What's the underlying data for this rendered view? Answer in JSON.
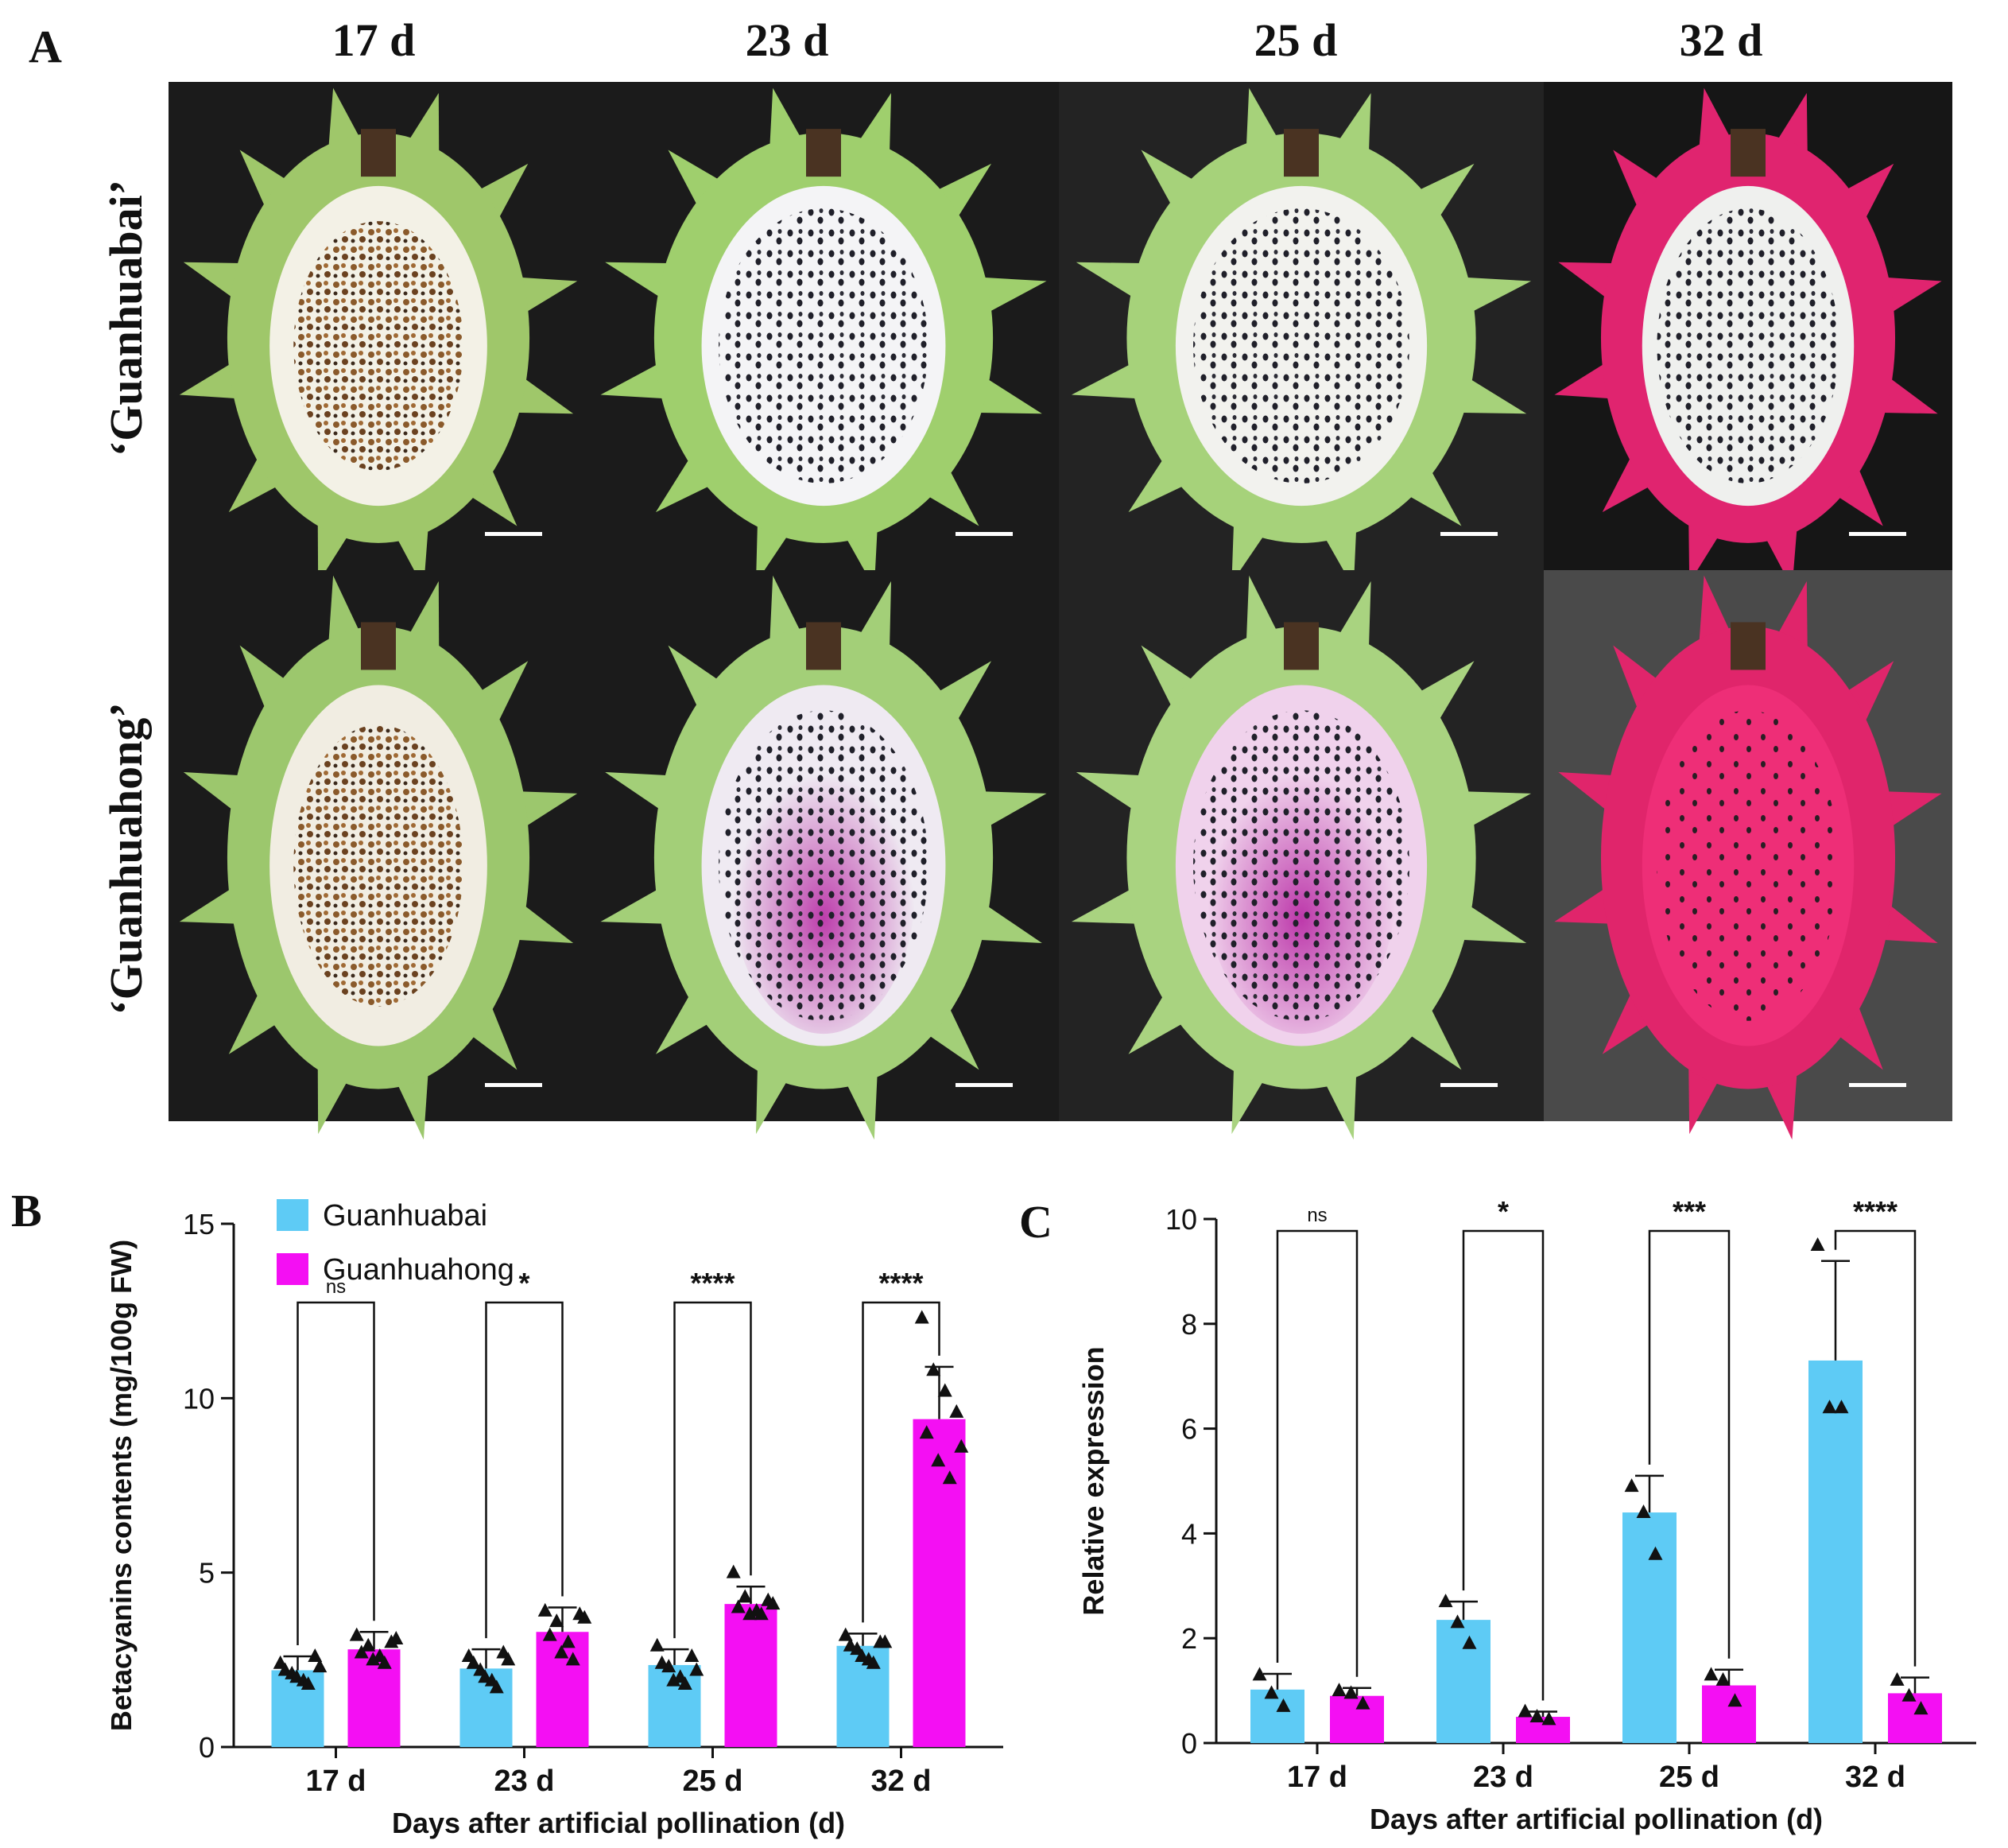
{
  "panel_a": {
    "label": "A",
    "column_headers": [
      "17 d",
      "23 d",
      "25 d",
      "32 d"
    ],
    "row_labels": [
      "‘Guanhuabai’",
      "‘Guanhuahong’"
    ],
    "photos": [
      {
        "cultivar": "Guanhuabai",
        "day": "17 d",
        "rind": "#9fc76a",
        "flesh": "#f3f1e6",
        "seeds": "#8a5a2b",
        "tint": "",
        "bg": "#1b1b1b"
      },
      {
        "cultivar": "Guanhuabai",
        "day": "23 d",
        "rind": "#9fcf6d",
        "flesh": "#f4f4f6",
        "seeds": "#1f1f28",
        "tint": "",
        "bg": "#1b1b1b"
      },
      {
        "cultivar": "Guanhuabai",
        "day": "25 d",
        "rind": "#a6d27a",
        "flesh": "#f2f2ee",
        "seeds": "#1f1f28",
        "tint": "",
        "bg": "#232323"
      },
      {
        "cultivar": "Guanhuabai",
        "day": "32 d",
        "rind": "#e0246f",
        "flesh": "#eff0ee",
        "seeds": "#1f1f28",
        "tint": "",
        "bg": "#161616"
      },
      {
        "cultivar": "Guanhuahong",
        "day": "17 d",
        "rind": "#9cc76d",
        "flesh": "#f1ede2",
        "seeds": "#8a5a2b",
        "tint": "",
        "bg": "#1b1b1b"
      },
      {
        "cultivar": "Guanhuahong",
        "day": "23 d",
        "rind": "#a3cf78",
        "flesh": "#efeaf2",
        "seeds": "#1f1f28",
        "tint": "#9c2a8c",
        "bg": "#1b1b1b"
      },
      {
        "cultivar": "Guanhuahong",
        "day": "25 d",
        "rind": "#a9d380",
        "flesh": "#f0d2ec",
        "seeds": "#1f1f28",
        "tint": "#b0129a",
        "bg": "#232323"
      },
      {
        "cultivar": "Guanhuahong",
        "day": "32 d",
        "rind": "#e0256b",
        "flesh": "#ee2e77",
        "seeds": "#2a1e24",
        "tint": "",
        "bg": "#4a4a4a"
      }
    ]
  },
  "chart_data": [
    {
      "panel": "B",
      "type": "bar",
      "xlabel": "Days after artificial pollination (d)",
      "ylabel": "Betacyanins contents (mg/100g FW)",
      "ylim": [
        0,
        15
      ],
      "yticks": [
        0,
        5,
        10,
        15
      ],
      "categories": [
        "17 d",
        "23 d",
        "25 d",
        "32 d"
      ],
      "series": [
        {
          "name": "Guanhuabai",
          "color": "#5ecbf5",
          "values": [
            2.2,
            2.25,
            2.35,
            2.9
          ],
          "errors": [
            0.4,
            0.55,
            0.45,
            0.35
          ],
          "points": [
            [
              2.4,
              2.1,
              1.9,
              2.6,
              2.2,
              2.0,
              1.8,
              2.3
            ],
            [
              2.6,
              2.2,
              1.9,
              2.7,
              2.4,
              2.0,
              1.7,
              2.5
            ],
            [
              2.9,
              2.3,
              2.0,
              2.6,
              2.4,
              1.9,
              1.8,
              2.2
            ],
            [
              3.2,
              2.8,
              2.5,
              3.0,
              2.9,
              2.6,
              2.4,
              3.0
            ]
          ]
        },
        {
          "name": "Guanhuahong",
          "color": "#f40ff3",
          "values": [
            2.8,
            3.3,
            4.1,
            9.4
          ],
          "errors": [
            0.5,
            0.7,
            0.5,
            1.5
          ],
          "points": [
            [
              3.2,
              2.9,
              2.6,
              3.0,
              2.7,
              2.5,
              2.4,
              3.1
            ],
            [
              3.9,
              3.6,
              3.0,
              3.8,
              3.2,
              2.7,
              2.5,
              3.7
            ],
            [
              5.0,
              4.3,
              3.9,
              4.2,
              4.0,
              3.8,
              3.8,
              4.1
            ],
            [
              12.3,
              10.8,
              10.2,
              9.6,
              9.0,
              8.2,
              7.7,
              8.6
            ]
          ]
        }
      ],
      "significance": [
        "ns",
        "*",
        "****",
        "****"
      ],
      "legend": {
        "placement": "top-left",
        "entries": [
          "Guanhuabai",
          "Guanhuahong"
        ]
      }
    },
    {
      "panel": "C",
      "type": "bar",
      "xlabel": "Days after artificial pollination (d)",
      "ylabel": "Relative expression",
      "ylim": [
        0,
        10
      ],
      "yticks": [
        0,
        2,
        4,
        6,
        8,
        10
      ],
      "categories": [
        "17 d",
        "23 d",
        "25 d",
        "32 d"
      ],
      "series": [
        {
          "name": "Guanhuabai",
          "color": "#5ecbf5",
          "values": [
            1.02,
            2.35,
            4.4,
            7.3
          ],
          "errors": [
            0.3,
            0.35,
            0.7,
            1.9
          ],
          "points": [
            [
              1.3,
              0.95,
              0.7
            ],
            [
              2.7,
              2.3,
              1.9
            ],
            [
              4.9,
              4.4,
              3.6
            ],
            [
              9.5,
              6.4,
              6.4
            ]
          ]
        },
        {
          "name": "Guanhuahong",
          "color": "#f40ff3",
          "values": [
            0.9,
            0.5,
            1.1,
            0.95
          ],
          "errors": [
            0.15,
            0.1,
            0.3,
            0.3
          ],
          "points": [
            [
              1.0,
              0.95,
              0.75
            ],
            [
              0.6,
              0.5,
              0.45
            ],
            [
              1.3,
              1.2,
              0.8
            ],
            [
              1.2,
              0.9,
              0.65
            ]
          ]
        }
      ],
      "significance": [
        "ns",
        "*",
        "***",
        "****"
      ]
    }
  ],
  "panel_labels": {
    "b": "B",
    "c": "C"
  }
}
